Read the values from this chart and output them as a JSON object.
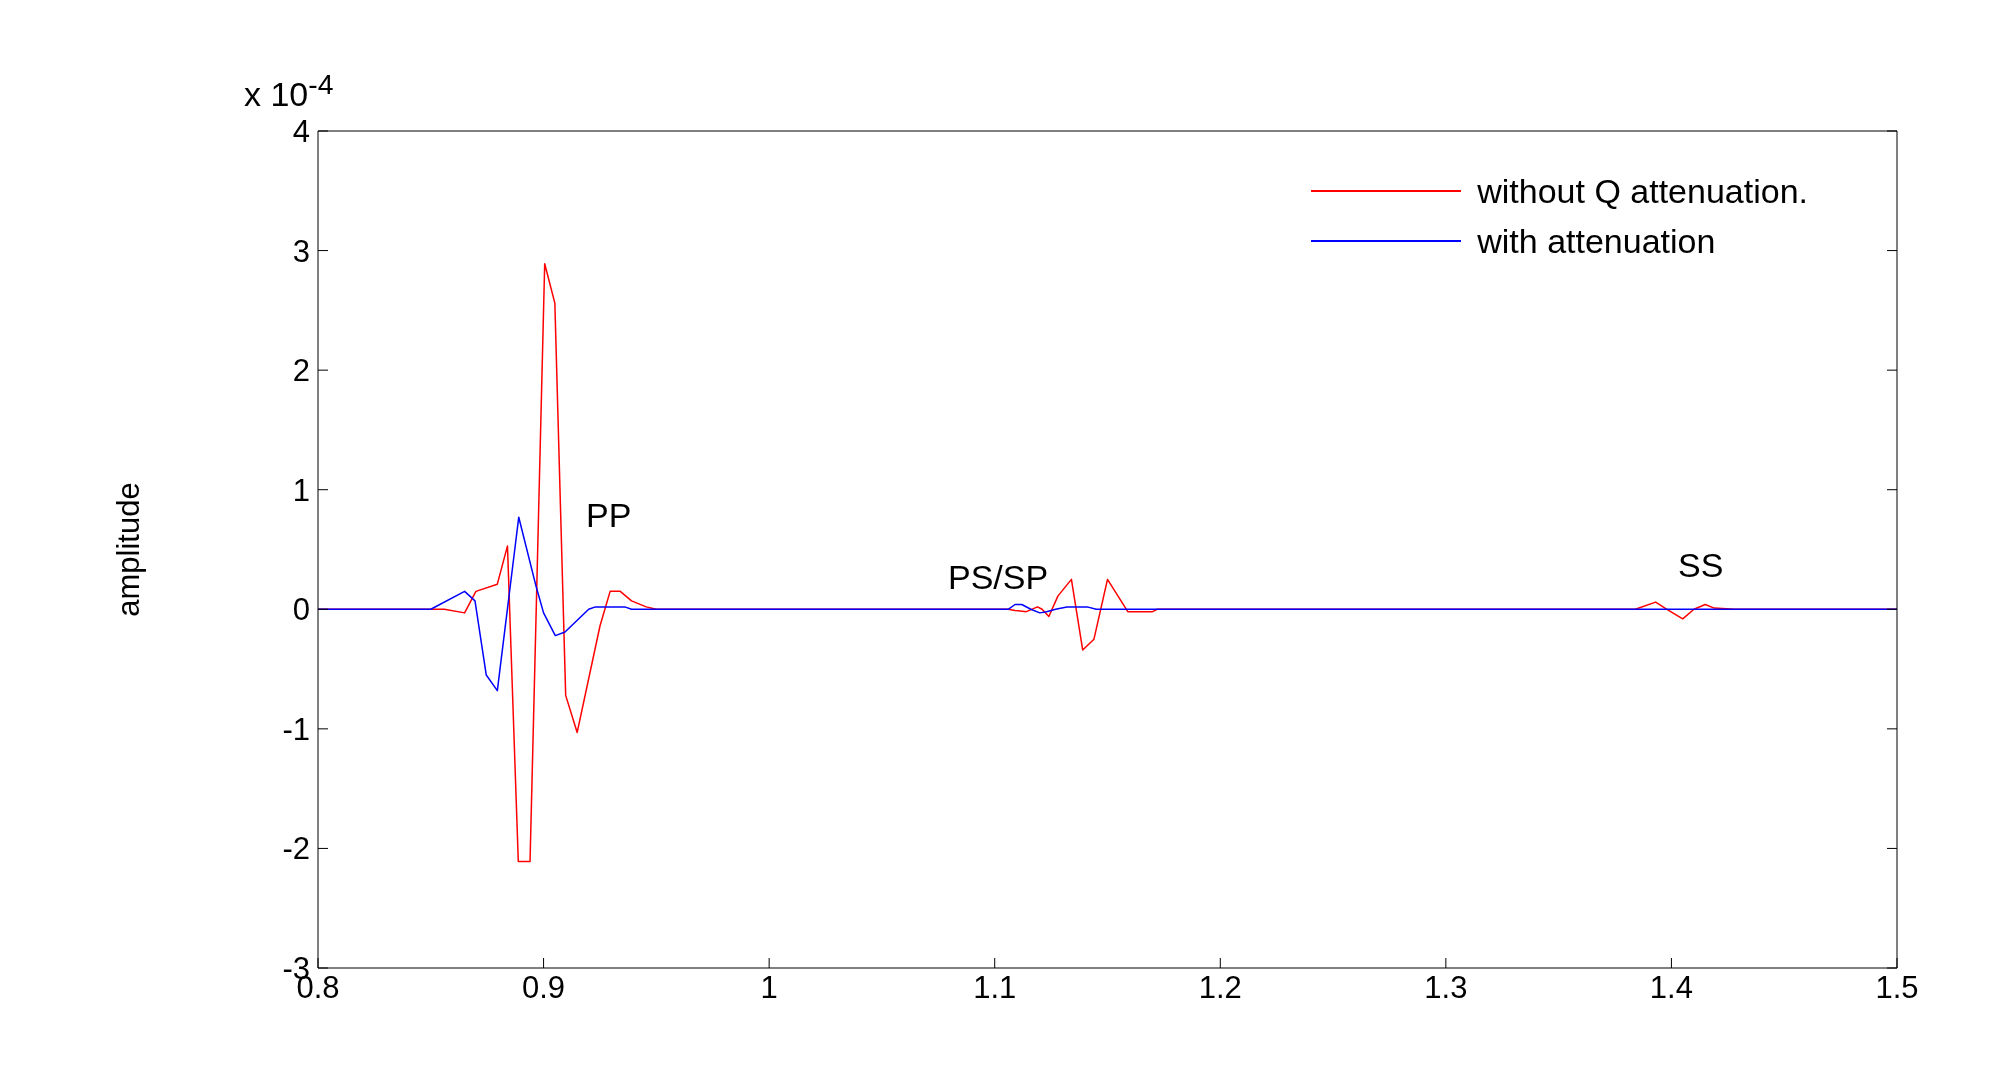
{
  "chart_data": {
    "type": "line",
    "ylabel": "amplitude",
    "xlim": [
      0.8,
      1.5
    ],
    "xticks": [
      0.8,
      0.9,
      1,
      1.1,
      1.2,
      1.3,
      1.4,
      1.5
    ],
    "ylim": [
      -3,
      4
    ],
    "yticks": [
      -3,
      -2,
      -1,
      0,
      1,
      2,
      3,
      4
    ],
    "grid": false,
    "legend": "top right",
    "marker": "none",
    "line_style": "solid",
    "annotations": [
      "x 10$^{-4}$",
      "PP",
      "PS/SP",
      "SS"
    ],
    "series": [
      {
        "name": "without Q attenuation.",
        "color": "#ff0000",
        "x": [
          0.8,
          0.85,
          0.856,
          0.865,
          0.87,
          0.8795,
          0.884,
          0.8888,
          0.894,
          0.9005,
          0.905,
          0.9098,
          0.9149,
          0.925,
          0.9295,
          0.934,
          0.939,
          0.9455,
          0.95,
          1.106,
          1.109,
          1.114,
          1.119,
          1.121,
          1.124,
          1.128,
          1.134,
          1.139,
          1.144,
          1.15,
          1.159,
          1.17,
          1.172,
          1.384,
          1.393,
          1.398,
          1.405,
          1.41,
          1.415,
          1.419,
          1.428,
          1.5
        ],
        "values": [
          0,
          0,
          0,
          -0.03,
          0.15,
          0.21,
          0.53,
          -2.11,
          -2.11,
          2.89,
          2.56,
          -0.72,
          -1.03,
          -0.14,
          0.15,
          0.15,
          0.07,
          0.02,
          0,
          0,
          -0.01,
          -0.02,
          0.02,
          0,
          -0.06,
          0.11,
          0.25,
          -0.34,
          -0.25,
          0.25,
          -0.02,
          -0.02,
          0,
          0,
          0.06,
          0,
          -0.08,
          0,
          0.04,
          0.01,
          0,
          0
        ]
      },
      {
        "name": "with attenuation",
        "color": "#0000ff",
        "x": [
          0.8,
          0.85,
          0.865,
          0.8696,
          0.8746,
          0.8795,
          0.889,
          0.8967,
          0.9,
          0.9052,
          0.9095,
          0.92,
          0.923,
          0.936,
          0.939,
          1.106,
          1.109,
          1.112,
          1.116,
          1.12,
          1.123,
          1.127,
          1.132,
          1.141,
          1.145,
          1.5
        ],
        "values": [
          0,
          0,
          0.15,
          0.07,
          -0.55,
          -0.68,
          0.77,
          0.19,
          -0.03,
          -0.22,
          -0.19,
          0,
          0.02,
          0.02,
          0,
          0,
          0.04,
          0.04,
          0,
          -0.03,
          -0.02,
          0,
          0.02,
          0.02,
          0,
          0
        ]
      }
    ]
  }
}
